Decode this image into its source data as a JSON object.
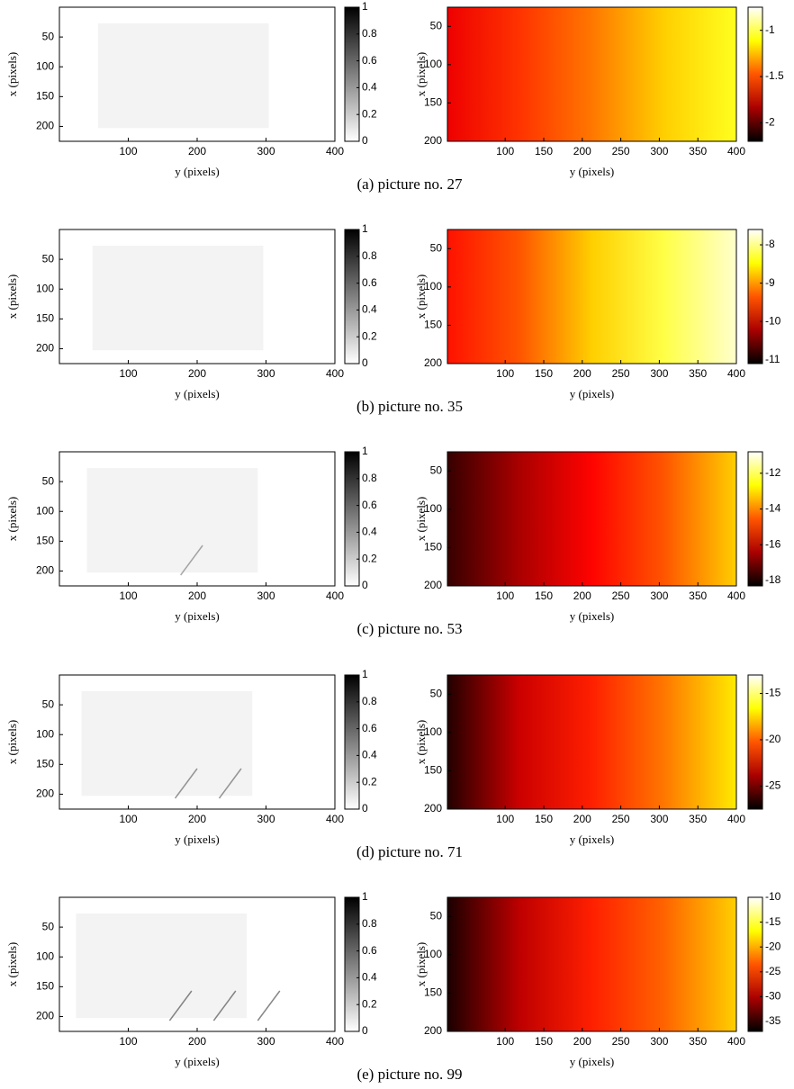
{
  "chart_data": [
    {
      "type": "heatmap",
      "colormap": "gray_r",
      "xlabel": "y (pixels)",
      "ylabel": "x (pixels)",
      "xlim": [
        0,
        400
      ],
      "ylim": [
        0,
        225
      ],
      "xticks": [
        100,
        200,
        300,
        400
      ],
      "yticks": [
        50,
        100,
        150,
        200
      ],
      "clim": [
        0,
        1
      ],
      "cticks": [
        0,
        0.2,
        0.4,
        0.6,
        0.8,
        1
      ]
    },
    {
      "type": "heatmap",
      "colormap": "hot",
      "xlabel": "y (pixels)",
      "ylabel": "x (pixels)",
      "xlim": [
        25,
        400
      ],
      "ylim": [
        25,
        200
      ],
      "xticks": [
        100,
        150,
        200,
        250,
        300,
        350,
        400
      ],
      "yticks": [
        50,
        100,
        150,
        200
      ],
      "clim": [
        -2.2,
        -0.75
      ],
      "cticks": [
        -2,
        -1.5,
        -1
      ]
    },
    {
      "type": "heatmap",
      "colormap": "gray_r",
      "xlabel": "y (pixels)",
      "ylabel": "x (pixels)",
      "xlim": [
        0,
        400
      ],
      "ylim": [
        0,
        225
      ],
      "xticks": [
        100,
        200,
        300,
        400
      ],
      "yticks": [
        50,
        100,
        150,
        200
      ],
      "clim": [
        0,
        1
      ],
      "cticks": [
        0,
        0.2,
        0.4,
        0.6,
        0.8,
        1
      ]
    },
    {
      "type": "heatmap",
      "colormap": "hot",
      "xlabel": "y (pixels)",
      "ylabel": "x (pixels)",
      "xlim": [
        25,
        400
      ],
      "ylim": [
        25,
        200
      ],
      "xticks": [
        100,
        150,
        200,
        250,
        300,
        350,
        400
      ],
      "yticks": [
        50,
        100,
        150,
        200
      ],
      "clim": [
        -11.1,
        -7.6
      ],
      "cticks": [
        -11,
        -10,
        -9,
        -8
      ]
    },
    {
      "type": "heatmap",
      "colormap": "gray_r",
      "xlabel": "y (pixels)",
      "ylabel": "x (pixels)",
      "xlim": [
        0,
        400
      ],
      "ylim": [
        0,
        225
      ],
      "xticks": [
        100,
        200,
        300,
        400
      ],
      "yticks": [
        50,
        100,
        150,
        200
      ],
      "clim": [
        0,
        1
      ],
      "cticks": [
        0,
        0.2,
        0.4,
        0.6,
        0.8,
        1
      ]
    },
    {
      "type": "heatmap",
      "colormap": "hot",
      "xlabel": "y (pixels)",
      "ylabel": "x (pixels)",
      "xlim": [
        25,
        400
      ],
      "ylim": [
        25,
        200
      ],
      "xticks": [
        100,
        150,
        200,
        250,
        300,
        350,
        400
      ],
      "yticks": [
        50,
        100,
        150,
        200
      ],
      "clim": [
        -18.3,
        -10.8
      ],
      "cticks": [
        -18,
        -16,
        -14,
        -12
      ]
    },
    {
      "type": "heatmap",
      "colormap": "gray_r",
      "xlabel": "y (pixels)",
      "ylabel": "x (pixels)",
      "xlim": [
        0,
        400
      ],
      "ylim": [
        0,
        225
      ],
      "xticks": [
        100,
        200,
        300,
        400
      ],
      "yticks": [
        50,
        100,
        150,
        200
      ],
      "clim": [
        0,
        1
      ],
      "cticks": [
        0,
        0.2,
        0.4,
        0.6,
        0.8,
        1
      ]
    },
    {
      "type": "heatmap",
      "colormap": "hot",
      "xlabel": "y (pixels)",
      "ylabel": "x (pixels)",
      "xlim": [
        25,
        400
      ],
      "ylim": [
        25,
        200
      ],
      "xticks": [
        100,
        150,
        200,
        250,
        300,
        350,
        400
      ],
      "yticks": [
        50,
        100,
        150,
        200
      ],
      "clim": [
        -27.5,
        -13
      ],
      "cticks": [
        -25,
        -20,
        -15
      ]
    },
    {
      "type": "heatmap",
      "colormap": "gray_r",
      "xlabel": "y (pixels)",
      "ylabel": "x (pixels)",
      "xlim": [
        0,
        400
      ],
      "ylim": [
        0,
        225
      ],
      "xticks": [
        100,
        200,
        300,
        400
      ],
      "yticks": [
        50,
        100,
        150,
        200
      ],
      "clim": [
        0,
        1
      ],
      "cticks": [
        0,
        0.2,
        0.4,
        0.6,
        0.8,
        1
      ]
    },
    {
      "type": "heatmap",
      "colormap": "hot",
      "xlabel": "y (pixels)",
      "ylabel": "x (pixels)",
      "xlim": [
        25,
        400
      ],
      "ylim": [
        25,
        200
      ],
      "xticks": [
        100,
        150,
        200,
        250,
        300,
        350,
        400
      ],
      "yticks": [
        50,
        100,
        150,
        200
      ],
      "clim": [
        -37,
        -10
      ],
      "cticks": [
        -35,
        -30,
        -25,
        -20,
        -15,
        -10
      ]
    }
  ],
  "captions": [
    "(a)  picture no. 27",
    "(b)  picture no. 35",
    "(c)  picture no. 53",
    "(d)  picture no. 71",
    "(e)  picture no. 99"
  ]
}
